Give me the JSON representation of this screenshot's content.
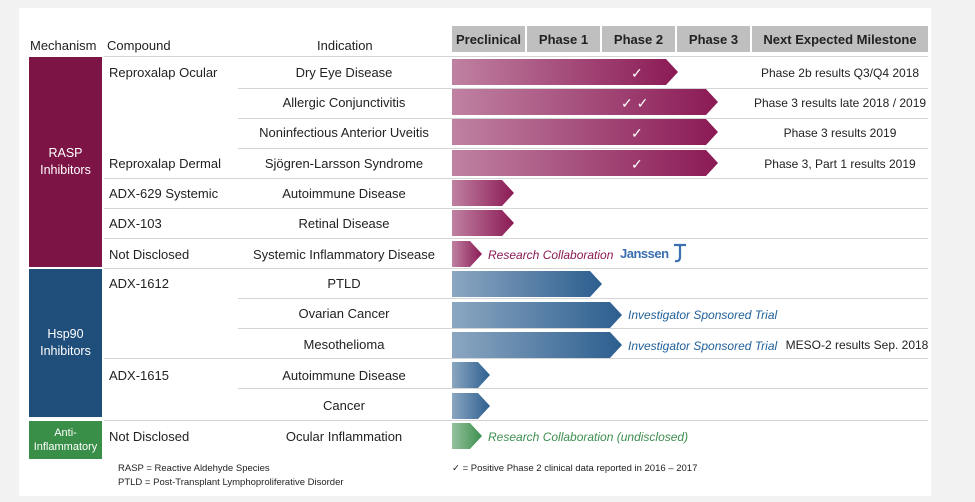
{
  "headers": {
    "mechanism": "Mechanism",
    "compound": "Compound",
    "indication": "Indication",
    "phases": [
      "Preclinical",
      "Phase 1",
      "Phase 2",
      "Phase 3",
      "Next Expected Milestone"
    ]
  },
  "groups": {
    "rasp": "RASP Inhibitors",
    "hsp90": "Hsp90 Inhibitors",
    "anti": "Anti-Inflammatory"
  },
  "compounds": [
    "Reproxalap Ocular",
    "Reproxalap Dermal",
    "ADX-629 Systemic",
    "ADX-103",
    "Not Disclosed",
    "ADX-1612",
    "ADX-1615",
    "Not Disclosed"
  ],
  "rows": [
    {
      "indication": "Dry Eye Disease",
      "progress_phase": 2,
      "color": "#8b1a55",
      "check": "✓",
      "milestone": "Phase 2b results Q3/Q4 2018"
    },
    {
      "indication": "Allergic Conjunctivitis",
      "progress_phase": 3,
      "color": "#8b1a55",
      "check": "✓ ✓",
      "milestone": "Phase 3 results late 2018 / 2019"
    },
    {
      "indication": "Noninfectious Anterior Uveitis",
      "progress_phase": 3,
      "color": "#8b1a55",
      "check": "✓",
      "milestone": "Phase 3 results 2019"
    },
    {
      "indication": "Sjögren-Larsson Syndrome",
      "progress_phase": 3,
      "color": "#8b1a55",
      "check": "✓",
      "milestone": "Phase 3, Part 1 results 2019"
    },
    {
      "indication": "Autoimmune Disease",
      "progress_phase": 0,
      "color": "#8b1a55"
    },
    {
      "indication": "Retinal Disease",
      "progress_phase": 0,
      "color": "#8b1a55"
    },
    {
      "indication": "Systemic Inflammatory Disease",
      "progress_phase": 0,
      "color": "#8b1a55",
      "note": "Research Collaboration",
      "partner": "Janssen"
    },
    {
      "indication": "PTLD",
      "progress_phase": 1,
      "color": "#2c5e8f"
    },
    {
      "indication": "Ovarian Cancer",
      "progress_phase": 2,
      "color": "#2c5e8f",
      "note": "Investigator Sponsored Trial"
    },
    {
      "indication": "Mesothelioma",
      "progress_phase": 2,
      "color": "#2c5e8f",
      "note": "Investigator Sponsored Trial",
      "milestone": "MESO-2 results Sep. 2018"
    },
    {
      "indication": "Autoimmune Disease",
      "progress_phase": 0,
      "color": "#2c5e8f"
    },
    {
      "indication": "Cancer",
      "progress_phase": 0,
      "color": "#2c5e8f"
    },
    {
      "indication": "Ocular Inflammation",
      "progress_phase": 0,
      "color": "#3d8f4f",
      "note": "Research Collaboration (undisclosed)"
    }
  ],
  "footnotes": {
    "rasp": "RASP = Reactive Aldehyde Species",
    "ptld": "PTLD = Post-Transplant Lymphoproliferative Disorder",
    "check": "✓ = Positive Phase 2 clinical data reported in 2016 – 2017"
  }
}
